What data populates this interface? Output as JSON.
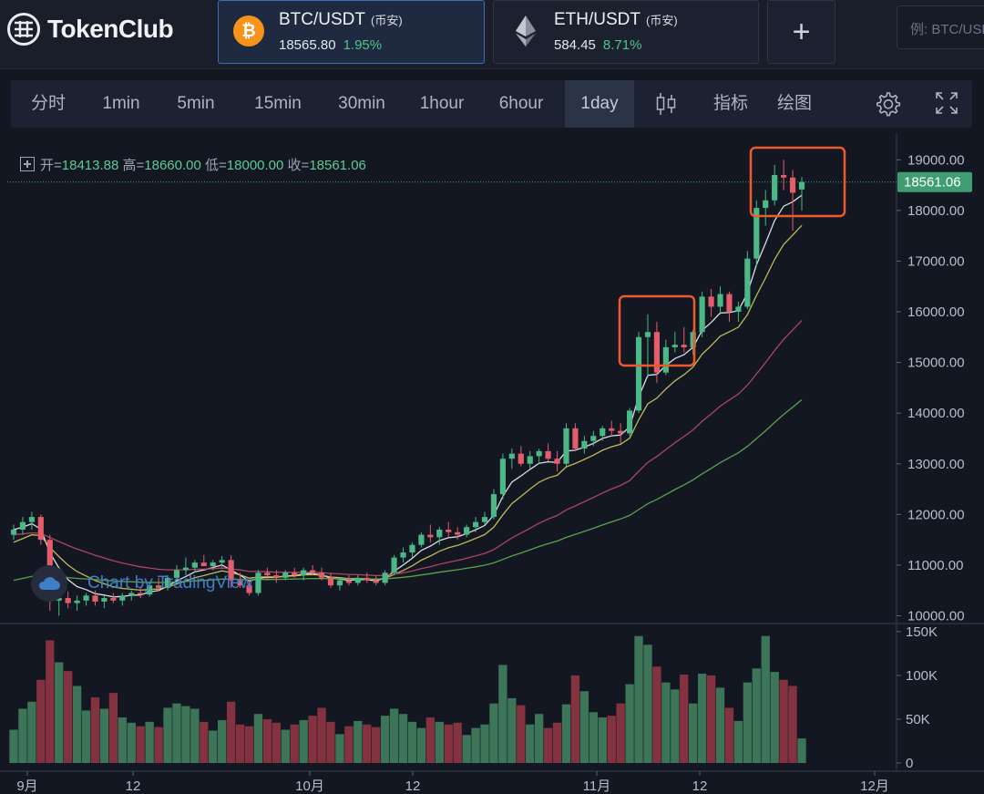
{
  "app": {
    "name": "TokenClub"
  },
  "tickers": [
    {
      "pair": "BTC/USDT",
      "exchange": "(币安)",
      "price": "18565.80",
      "change": "1.95%",
      "icon": "bitcoin-icon",
      "color": "#f7931a"
    },
    {
      "pair": "ETH/USDT",
      "exchange": "(币安)",
      "price": "584.45",
      "change": "8.71%",
      "icon": "ethereum-icon",
      "color": "#627eea"
    }
  ],
  "add_label": "+",
  "search": {
    "placeholder": "例: BTC/USDT"
  },
  "toolbar": {
    "intervals": [
      "分时",
      "1min",
      "5min",
      "15min",
      "30min",
      "1hour",
      "6hour",
      "1day"
    ],
    "active_interval": "1day",
    "indicators_label": "指标",
    "draw_label": "绘图"
  },
  "ohlc": {
    "open_label": "开=",
    "open": "18413.88",
    "high_label": "高=",
    "high": "18660.00",
    "low_label": "低=",
    "low": "18000.00",
    "close_label": "收=",
    "close": "18561.06"
  },
  "last_price_label": "18561.06",
  "watermark": "Chart by TradingView",
  "colors": {
    "up": "#4bb886",
    "down": "#e35d6a",
    "ma_fast": "#e6e8ee",
    "ma_mid": "#c7c35a",
    "ma_slow": "#b4476a",
    "ma_long": "#5fa94e",
    "highlight": "#ef5a2c",
    "accent": "#3b6fb6"
  },
  "chart_data": {
    "type": "candlestick",
    "price_ticks": [
      "19000.00",
      "18000.00",
      "17000.00",
      "16000.00",
      "15000.00",
      "14000.00",
      "13000.00",
      "12000.00",
      "11000.00",
      "10000.00"
    ],
    "price_range": [
      9800,
      19250
    ],
    "volume_ticks": [
      "150K",
      "100K",
      "50K",
      "0"
    ],
    "volume_range": [
      0,
      150000
    ],
    "x_labels": [
      "9月",
      "12",
      "10月",
      "12",
      "11月",
      "12",
      "12月"
    ],
    "candles": [
      [
        11600,
        11800,
        11500,
        11700,
        38000
      ],
      [
        11700,
        11950,
        11600,
        11850,
        62000
      ],
      [
        11850,
        12050,
        11700,
        11950,
        70000
      ],
      [
        11950,
        12000,
        11400,
        11500,
        95000
      ],
      [
        11500,
        11600,
        10100,
        10300,
        140000
      ],
      [
        10300,
        10500,
        10000,
        10350,
        115000
      ],
      [
        10350,
        10480,
        10150,
        10250,
        105000
      ],
      [
        10250,
        10400,
        10100,
        10300,
        88000
      ],
      [
        10300,
        10450,
        10200,
        10400,
        60000
      ],
      [
        10400,
        10500,
        10200,
        10280,
        75000
      ],
      [
        10280,
        10400,
        10150,
        10350,
        62000
      ],
      [
        10350,
        10450,
        10250,
        10300,
        80000
      ],
      [
        10300,
        10450,
        10200,
        10400,
        52000
      ],
      [
        10400,
        10500,
        10300,
        10450,
        46000
      ],
      [
        10450,
        10550,
        10350,
        10420,
        42000
      ],
      [
        10420,
        10650,
        10380,
        10600,
        47000
      ],
      [
        10600,
        10750,
        10500,
        10550,
        41000
      ],
      [
        10550,
        10800,
        10500,
        10750,
        63000
      ],
      [
        10750,
        11000,
        10700,
        10900,
        68000
      ],
      [
        10900,
        11150,
        10800,
        10950,
        65000
      ],
      [
        10950,
        11100,
        10850,
        11050,
        62000
      ],
      [
        11050,
        11200,
        11000,
        10980,
        47000
      ],
      [
        10980,
        11100,
        10900,
        11050,
        37000
      ],
      [
        11050,
        11180,
        10950,
        11100,
        49000
      ],
      [
        11100,
        11200,
        10550,
        10700,
        70000
      ],
      [
        10700,
        10850,
        10550,
        10600,
        44000
      ],
      [
        10600,
        10700,
        10400,
        10450,
        42000
      ],
      [
        10450,
        10900,
        10400,
        10850,
        56000
      ],
      [
        10850,
        10950,
        10700,
        10800,
        50000
      ],
      [
        10800,
        10900,
        10650,
        10750,
        46000
      ],
      [
        10750,
        10900,
        10700,
        10850,
        38000
      ],
      [
        10850,
        10950,
        10750,
        10800,
        44000
      ],
      [
        10800,
        10950,
        10700,
        10900,
        49000
      ],
      [
        10900,
        11000,
        10800,
        10850,
        54000
      ],
      [
        10850,
        10950,
        10700,
        10750,
        63000
      ],
      [
        10750,
        10850,
        10550,
        10600,
        47000
      ],
      [
        10600,
        10750,
        10500,
        10700,
        33000
      ],
      [
        10700,
        10800,
        10600,
        10650,
        42000
      ],
      [
        10650,
        10800,
        10600,
        10750,
        48000
      ],
      [
        10750,
        10850,
        10650,
        10700,
        44000
      ],
      [
        10700,
        10800,
        10600,
        10650,
        41000
      ],
      [
        10650,
        10900,
        10600,
        10850,
        54000
      ],
      [
        10850,
        11200,
        10800,
        11150,
        62000
      ],
      [
        11150,
        11350,
        11050,
        11250,
        56000
      ],
      [
        11250,
        11450,
        11150,
        11400,
        47000
      ],
      [
        11400,
        11650,
        11350,
        11600,
        40000
      ],
      [
        11600,
        11800,
        11450,
        11550,
        52000
      ],
      [
        11550,
        11750,
        11400,
        11700,
        47000
      ],
      [
        11700,
        11850,
        11550,
        11650,
        44000
      ],
      [
        11650,
        11750,
        11500,
        11600,
        46000
      ],
      [
        11600,
        11800,
        11550,
        11750,
        32000
      ],
      [
        11750,
        11950,
        11650,
        11850,
        40000
      ],
      [
        11850,
        12050,
        11800,
        11950,
        44000
      ],
      [
        11950,
        12500,
        11900,
        12400,
        68000
      ],
      [
        12400,
        13200,
        12300,
        13100,
        112000
      ],
      [
        13100,
        13300,
        12900,
        13200,
        74000
      ],
      [
        13200,
        13350,
        12950,
        13000,
        66000
      ],
      [
        13000,
        13250,
        12900,
        13150,
        44000
      ],
      [
        13150,
        13300,
        13000,
        13250,
        56000
      ],
      [
        13250,
        13400,
        13050,
        13100,
        40000
      ],
      [
        13100,
        13250,
        12850,
        13000,
        46000
      ],
      [
        13000,
        13800,
        12950,
        13700,
        67000
      ],
      [
        13700,
        13800,
        13250,
        13300,
        100000
      ],
      [
        13300,
        13550,
        13200,
        13450,
        82000
      ],
      [
        13450,
        13650,
        13350,
        13550,
        58000
      ],
      [
        13550,
        13750,
        13450,
        13700,
        52000
      ],
      [
        13700,
        13850,
        13550,
        13650,
        54000
      ],
      [
        13650,
        13800,
        13400,
        13600,
        68000
      ],
      [
        13600,
        14100,
        13550,
        14050,
        90000
      ],
      [
        14050,
        15600,
        14000,
        15500,
        145000
      ],
      [
        15500,
        15950,
        14700,
        15600,
        135000
      ],
      [
        15600,
        15800,
        14600,
        14800,
        110000
      ],
      [
        14800,
        15450,
        14750,
        15300,
        92000
      ],
      [
        15300,
        15600,
        15200,
        15350,
        84000
      ],
      [
        15350,
        15700,
        15200,
        15300,
        101000
      ],
      [
        15300,
        15650,
        15150,
        15600,
        68000
      ],
      [
        15600,
        16400,
        15500,
        16300,
        102000
      ],
      [
        16300,
        16450,
        15900,
        16100,
        100000
      ],
      [
        16100,
        16500,
        15950,
        16350,
        86000
      ],
      [
        16350,
        16400,
        15800,
        16000,
        63000
      ],
      [
        16000,
        16200,
        15800,
        16100,
        48000
      ],
      [
        16100,
        17200,
        16050,
        17050,
        92000
      ],
      [
        17050,
        18200,
        16900,
        18050,
        108000
      ],
      [
        18050,
        18400,
        17700,
        18200,
        145000
      ],
      [
        18200,
        18900,
        18100,
        18700,
        104000
      ],
      [
        18700,
        19000,
        18400,
        18650,
        95000
      ],
      [
        18650,
        18800,
        17600,
        18350,
        88000
      ],
      [
        18413.88,
        18660,
        18000,
        18561.06,
        28000
      ]
    ]
  }
}
